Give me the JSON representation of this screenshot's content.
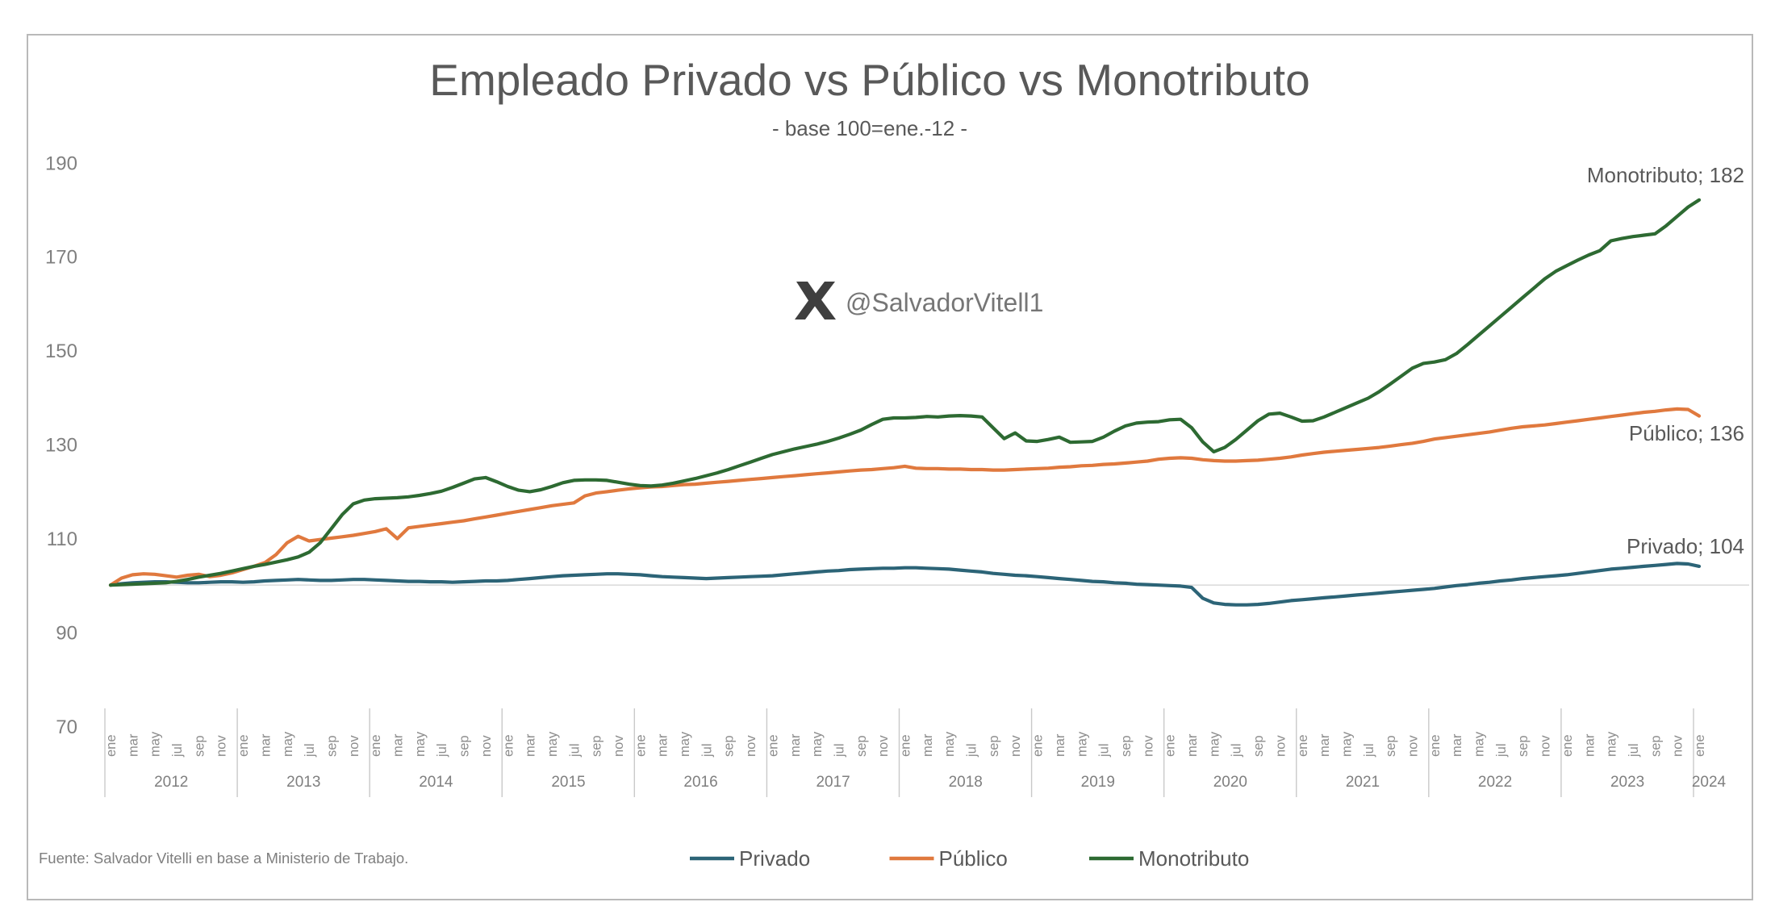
{
  "header": {
    "title": "Empleado Privado vs Público vs Monotributo",
    "subtitle": "- base 100=ene.-12 -"
  },
  "watermark": {
    "handle": "@SalvadorVitell1",
    "logo": "x-logo"
  },
  "footer": {
    "source": "Fuente: Salvador Vitelli en base a Ministerio de Trabajo."
  },
  "colors": {
    "privado": "#2c6477",
    "publico": "#e0793e",
    "monotributo": "#2d6a32",
    "grid100": "#dcdcdc",
    "axis_text": "#7f7f7f",
    "separator": "#c9c9c9"
  },
  "legend": [
    {
      "key": "privado",
      "label": "Privado"
    },
    {
      "key": "publico",
      "label": "Público"
    },
    {
      "key": "monotributo",
      "label": "Monotributo"
    }
  ],
  "end_labels": [
    {
      "series": "monotributo",
      "text": "Monotributo;  182"
    },
    {
      "series": "publico",
      "text": "Público;  136"
    },
    {
      "series": "privado",
      "text": "Privado;  104"
    }
  ],
  "axes": {
    "y_ticks": [
      190,
      170,
      150,
      130,
      110,
      90,
      70
    ],
    "month_tick_labels": [
      "ene",
      "mar",
      "may",
      "jul",
      "sep",
      "nov"
    ],
    "years": [
      "2012",
      "2013",
      "2014",
      "2015",
      "2016",
      "2017",
      "2018",
      "2019",
      "2020",
      "2021",
      "2022",
      "2023"
    ],
    "final_month_label": "ene",
    "final_year_label": "2024"
  },
  "chart_data": {
    "type": "line",
    "title": "Empleado Privado vs Público vs Monotributo",
    "subtitle": "- base 100=ene.-12 -",
    "x_start": "ene-2012",
    "x_end": "ene-2024",
    "frequency": "monthly",
    "ylim": [
      70,
      190
    ],
    "baseline_value": 100,
    "legend_position": "bottom",
    "grid": "only 100 baseline",
    "series": [
      {
        "name": "Privado",
        "color_key": "privado",
        "final_value": 104,
        "values": [
          100.0,
          100.3,
          100.5,
          100.6,
          100.7,
          100.7,
          100.6,
          100.5,
          100.5,
          100.6,
          100.7,
          100.7,
          100.6,
          100.7,
          100.9,
          101.0,
          101.1,
          101.2,
          101.1,
          101.0,
          101.0,
          101.1,
          101.2,
          101.2,
          101.1,
          101.0,
          100.9,
          100.8,
          100.8,
          100.7,
          100.7,
          100.6,
          100.7,
          100.8,
          100.9,
          100.9,
          101.0,
          101.2,
          101.4,
          101.6,
          101.8,
          102.0,
          102.1,
          102.2,
          102.3,
          102.4,
          102.4,
          102.3,
          102.2,
          102.0,
          101.8,
          101.7,
          101.6,
          101.5,
          101.4,
          101.5,
          101.6,
          101.7,
          101.8,
          101.9,
          102.0,
          102.2,
          102.4,
          102.6,
          102.8,
          103.0,
          103.1,
          103.3,
          103.4,
          103.5,
          103.6,
          103.6,
          103.7,
          103.7,
          103.6,
          103.5,
          103.4,
          103.2,
          103.0,
          102.8,
          102.5,
          102.3,
          102.1,
          102.0,
          101.8,
          101.6,
          101.4,
          101.2,
          101.0,
          100.8,
          100.7,
          100.5,
          100.4,
          100.2,
          100.1,
          100.0,
          99.9,
          99.8,
          99.5,
          97.2,
          96.2,
          95.9,
          95.8,
          95.8,
          95.9,
          96.1,
          96.4,
          96.7,
          96.9,
          97.1,
          97.3,
          97.5,
          97.7,
          97.9,
          98.1,
          98.3,
          98.5,
          98.7,
          98.9,
          99.1,
          99.3,
          99.6,
          99.9,
          100.1,
          100.4,
          100.6,
          100.9,
          101.1,
          101.4,
          101.6,
          101.8,
          102.0,
          102.2,
          102.5,
          102.8,
          103.1,
          103.4,
          103.6,
          103.8,
          104.0,
          104.2,
          104.4,
          104.6,
          104.5,
          104.0
        ]
      },
      {
        "name": "Público",
        "color_key": "publico",
        "final_value": 136,
        "values": [
          100.0,
          101.5,
          102.2,
          102.4,
          102.3,
          102.0,
          101.7,
          102.1,
          102.3,
          101.8,
          102.1,
          102.6,
          103.3,
          104.0,
          104.8,
          106.5,
          109.0,
          110.4,
          109.4,
          109.7,
          110.0,
          110.3,
          110.6,
          111.0,
          111.4,
          112.0,
          109.9,
          112.2,
          112.5,
          112.8,
          113.1,
          113.4,
          113.7,
          114.1,
          114.5,
          114.9,
          115.3,
          115.7,
          116.1,
          116.5,
          116.9,
          117.2,
          117.5,
          119.0,
          119.6,
          119.9,
          120.2,
          120.5,
          120.7,
          120.9,
          121.0,
          121.2,
          121.4,
          121.5,
          121.7,
          121.9,
          122.1,
          122.3,
          122.5,
          122.7,
          122.9,
          123.1,
          123.3,
          123.5,
          123.7,
          123.9,
          124.1,
          124.3,
          124.5,
          124.6,
          124.8,
          125.0,
          125.3,
          124.9,
          124.8,
          124.8,
          124.7,
          124.7,
          124.6,
          124.6,
          124.5,
          124.5,
          124.6,
          124.7,
          124.8,
          124.9,
          125.1,
          125.2,
          125.4,
          125.5,
          125.7,
          125.8,
          126.0,
          126.2,
          126.4,
          126.8,
          127.0,
          127.1,
          127.0,
          126.7,
          126.5,
          126.4,
          126.4,
          126.5,
          126.6,
          126.8,
          127.0,
          127.3,
          127.7,
          128.0,
          128.3,
          128.5,
          128.7,
          128.9,
          129.1,
          129.3,
          129.6,
          129.9,
          130.2,
          130.6,
          131.1,
          131.4,
          131.7,
          132.0,
          132.3,
          132.6,
          133.0,
          133.4,
          133.7,
          133.9,
          134.1,
          134.4,
          134.7,
          135.0,
          135.3,
          135.6,
          135.9,
          136.2,
          136.5,
          136.8,
          137.0,
          137.3,
          137.5,
          137.4,
          136.0
        ]
      },
      {
        "name": "Monotributo",
        "color_key": "monotributo",
        "final_value": 182,
        "values": [
          100.0,
          100.1,
          100.2,
          100.3,
          100.4,
          100.5,
          100.8,
          101.2,
          101.7,
          102.1,
          102.5,
          103.0,
          103.5,
          104.0,
          104.4,
          104.9,
          105.4,
          106.0,
          107.0,
          109.0,
          112.0,
          115.0,
          117.3,
          118.1,
          118.4,
          118.5,
          118.6,
          118.8,
          119.1,
          119.5,
          120.0,
          120.8,
          121.7,
          122.6,
          122.9,
          122.0,
          121.0,
          120.2,
          119.9,
          120.3,
          121.0,
          121.8,
          122.3,
          122.4,
          122.4,
          122.3,
          121.9,
          121.5,
          121.2,
          121.1,
          121.3,
          121.7,
          122.2,
          122.7,
          123.3,
          123.9,
          124.6,
          125.4,
          126.2,
          127.0,
          127.8,
          128.4,
          129.0,
          129.5,
          130.0,
          130.6,
          131.3,
          132.1,
          133.0,
          134.2,
          135.3,
          135.6,
          135.6,
          135.7,
          135.9,
          135.8,
          136.0,
          136.1,
          136.0,
          135.8,
          133.5,
          131.2,
          132.4,
          130.7,
          130.6,
          131.0,
          131.5,
          130.4,
          130.5,
          130.6,
          131.5,
          132.8,
          133.9,
          134.5,
          134.7,
          134.8,
          135.2,
          135.3,
          133.5,
          130.5,
          128.4,
          129.3,
          131.0,
          133.0,
          135.0,
          136.4,
          136.6,
          135.8,
          134.9,
          135.0,
          135.8,
          136.8,
          137.8,
          138.8,
          139.8,
          141.2,
          142.8,
          144.5,
          146.2,
          147.2,
          147.5,
          148.0,
          149.3,
          151.2,
          153.2,
          155.2,
          157.2,
          159.2,
          161.2,
          163.2,
          165.2,
          166.8,
          168.0,
          169.2,
          170.3,
          171.2,
          173.3,
          173.8,
          174.2,
          174.5,
          174.8,
          176.5,
          178.5,
          180.5,
          182.0
        ]
      }
    ]
  }
}
